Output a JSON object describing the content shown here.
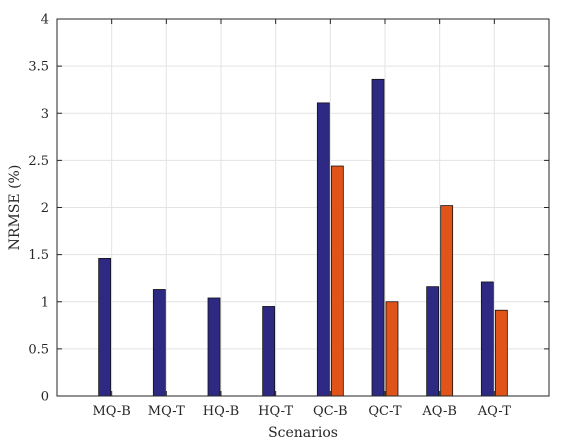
{
  "chart_data": {
    "type": "bar",
    "title": "",
    "xlabel": "Scenarios",
    "ylabel": "NRMSE (%)",
    "ylim": [
      0,
      4
    ],
    "yticks": [
      "0",
      "0.5",
      "1",
      "1.5",
      "2",
      "2.5",
      "3",
      "3.5",
      "4"
    ],
    "grid": true,
    "categories": [
      "MQ-B",
      "MQ-T",
      "HQ-B",
      "HQ-T",
      "QC-B",
      "QC-T",
      "AQ-B",
      "AQ-T"
    ],
    "series": [
      {
        "color": "#2e2a84",
        "values": [
          1.46,
          1.13,
          1.04,
          0.95,
          3.11,
          3.36,
          1.16,
          1.21
        ]
      },
      {
        "color": "#e0541a",
        "values": [
          null,
          null,
          null,
          null,
          2.44,
          1.0,
          2.02,
          0.91
        ]
      }
    ]
  }
}
